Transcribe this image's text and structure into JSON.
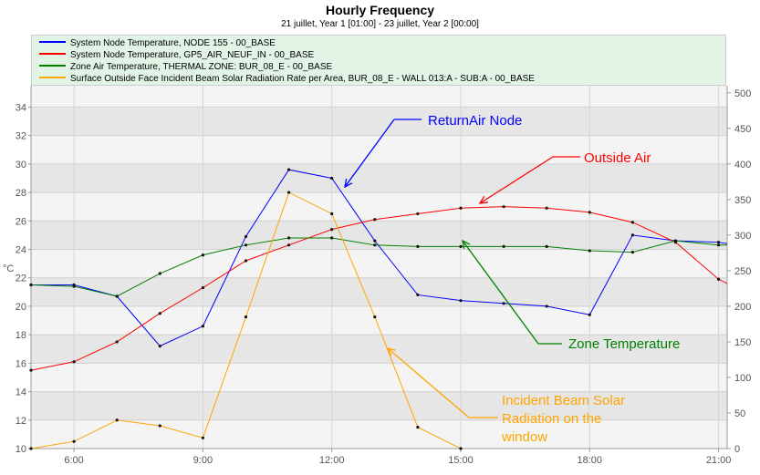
{
  "chart_data": {
    "type": "line",
    "title": "Hourly Frequency",
    "subtitle": "21 juillet, Year 1 [01:00] - 23 juillet, Year 2 [00:00]",
    "ylabel": "°C",
    "y2label": "",
    "xlim": [
      5,
      21.2
    ],
    "ylim": [
      10,
      35.5
    ],
    "y2lim": [
      0,
      510
    ],
    "grid": true,
    "legend_position": "top",
    "x_ticks": [
      {
        "x": 6,
        "label": "6:00"
      },
      {
        "x": 9,
        "label": "9:00"
      },
      {
        "x": 12,
        "label": "12:00"
      },
      {
        "x": 15,
        "label": "15:00"
      },
      {
        "x": 18,
        "label": "18:00"
      },
      {
        "x": 21,
        "label": "21:00"
      }
    ],
    "y_ticks": [
      10,
      12,
      14,
      16,
      18,
      20,
      22,
      24,
      26,
      28,
      30,
      32,
      34
    ],
    "y2_ticks": [
      0,
      50,
      100,
      150,
      200,
      250,
      300,
      350,
      400,
      450,
      500
    ],
    "series": [
      {
        "name": "System Node Temperature, NODE 155 - 00_BASE",
        "color": "#0000ff",
        "axis": "left",
        "x": [
          5,
          6,
          7,
          8,
          9,
          10,
          11,
          12,
          13,
          14,
          15,
          16,
          17,
          18,
          19,
          20,
          21,
          21.2
        ],
        "y": [
          21.5,
          21.5,
          20.7,
          17.2,
          18.6,
          24.9,
          29.6,
          29.0,
          24.6,
          20.8,
          20.4,
          20.2,
          20.0,
          19.4,
          25.0,
          24.6,
          24.5,
          24.4
        ]
      },
      {
        "name": "System Node Temperature, GP5_AIR_NEUF_IN - 00_BASE",
        "color": "#ff0000",
        "axis": "left",
        "x": [
          5,
          6,
          7,
          8,
          9,
          10,
          11,
          12,
          13,
          14,
          15,
          16,
          17,
          18,
          19,
          20,
          21,
          21.2
        ],
        "y": [
          15.5,
          16.1,
          17.5,
          19.5,
          21.3,
          23.2,
          24.3,
          25.4,
          26.1,
          26.5,
          26.9,
          27.0,
          26.9,
          26.6,
          25.9,
          24.5,
          21.9,
          21.6
        ]
      },
      {
        "name": "Zone Air Temperature, THERMAL ZONE: BUR_08_E - 00_BASE",
        "color": "#008000",
        "axis": "left",
        "x": [
          5,
          6,
          7,
          8,
          9,
          10,
          11,
          12,
          13,
          14,
          15,
          16,
          17,
          18,
          19,
          20,
          21,
          21.2
        ],
        "y": [
          21.5,
          21.4,
          20.7,
          22.3,
          23.6,
          24.3,
          24.8,
          24.8,
          24.3,
          24.2,
          24.2,
          24.2,
          24.2,
          23.9,
          23.8,
          24.6,
          24.3,
          24.3
        ]
      },
      {
        "name": "Surface Outside Face Incident Beam Solar Radiation Rate per Area, BUR_08_E - WALL 013:A - SUB:A - 00_BASE",
        "color": "#ffa500",
        "axis": "right",
        "x": [
          5,
          6,
          7,
          8,
          9,
          10,
          11,
          12,
          13,
          14,
          15
        ],
        "y": [
          0,
          10,
          40,
          32,
          15,
          185,
          360,
          330,
          185,
          30,
          0
        ]
      }
    ],
    "annotations": [
      {
        "text": "ReturnAir Node",
        "color": "#0000ff"
      },
      {
        "text": "Outside Air",
        "color": "#ff0000"
      },
      {
        "text": "Zone Temperature",
        "color": "#008000"
      },
      {
        "text": "Incident Beam Solar",
        "color": "#ffa500"
      },
      {
        "text": "Radiation on the",
        "color": "#ffa500"
      },
      {
        "text": "window",
        "color": "#ffa500"
      }
    ]
  }
}
